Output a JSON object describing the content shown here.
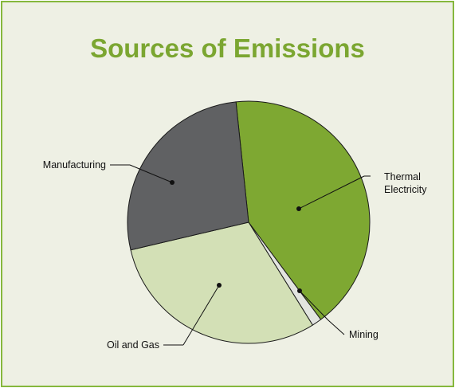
{
  "chart_data": {
    "type": "pie",
    "title": "Sources of Emissions",
    "slices": [
      {
        "label": "Thermal Electricity",
        "value": 41.5,
        "color": "#7ea832"
      },
      {
        "label": "Mining",
        "value": 1.3,
        "color": "#e2e4e0"
      },
      {
        "label": "Oil and Gas",
        "value": 30.2,
        "color": "#d3e0b6"
      },
      {
        "label": "Manufacturing",
        "value": 27.0,
        "color": "#606163"
      }
    ],
    "colors": {
      "title": "#7ba631",
      "border": "#86b83d",
      "background": "#eef0e4"
    }
  }
}
